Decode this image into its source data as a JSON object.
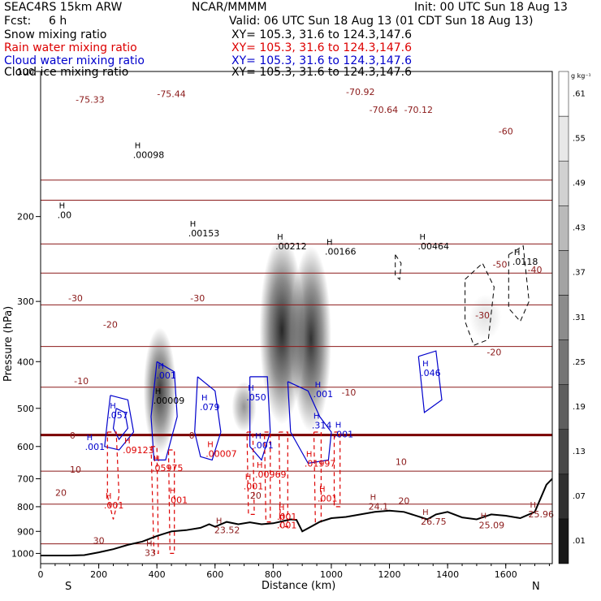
{
  "header": {
    "model": "SEAC4RS 15km ARW",
    "org": "NCAR/MMMM",
    "init": "Init: 00 UTC Sun 18 Aug 13",
    "fcst_label": "Fcst:",
    "fcst_value": "6 h",
    "valid": "Valid: 06 UTC Sun 18 Aug 13 (01 CDT Sun 18 Aug 13)"
  },
  "fields": [
    {
      "name": "Snow mixing ratio",
      "xy": "XY= 105.3, 31.6 to 124.3,147.6",
      "color": "#000000"
    },
    {
      "name": "Rain water mixing ratio",
      "xy": "XY= 105.3, 31.6 to 124.3,147.6",
      "color": "#dd0000"
    },
    {
      "name": "Cloud water mixing ratio",
      "xy": "XY= 105.3, 31.6 to 124.3,147.6",
      "color": "#0000cc"
    },
    {
      "name": "Cloud ice mixing ratio",
      "xy": "XY= 105.3, 31.6 to 124.3,147.6",
      "color": "#000000"
    }
  ],
  "colors": {
    "temperature": "#8b1a1a",
    "freezing_line": "#7a0000",
    "rain": "#dd0000",
    "cloud_water": "#0000cc",
    "terrain": "#000000"
  },
  "chart_data": {
    "type": "cross-section",
    "xlabel": "Distance (km)",
    "ylabel": "Pressure (hPa)",
    "x_range": [
      0,
      1760
    ],
    "y_range": [
      1050,
      100
    ],
    "y_scale": "log",
    "x_ticks": [
      0,
      200,
      400,
      600,
      800,
      1000,
      1200,
      1400,
      1600
    ],
    "y_ticks": [
      100,
      200,
      300,
      400,
      500,
      600,
      700,
      800,
      900,
      1000
    ],
    "start_label": "S",
    "end_label": "N",
    "colorbar": {
      "unit": "g kg⁻¹",
      "levels": [
        0.01,
        0.07,
        0.13,
        0.19,
        0.25,
        0.31,
        0.37,
        0.43,
        0.49,
        0.55,
        0.61
      ],
      "labels": [
        ".01",
        ".07",
        ".13",
        ".19",
        ".25",
        ".31",
        ".37",
        ".43",
        ".49",
        ".55",
        ".61"
      ]
    },
    "terrain": [
      [
        0,
        1010
      ],
      [
        100,
        1010
      ],
      [
        150,
        1008
      ],
      [
        200,
        995
      ],
      [
        250,
        980
      ],
      [
        300,
        960
      ],
      [
        350,
        945
      ],
      [
        400,
        920
      ],
      [
        450,
        900
      ],
      [
        500,
        895
      ],
      [
        550,
        885
      ],
      [
        580,
        870
      ],
      [
        600,
        880
      ],
      [
        640,
        860
      ],
      [
        680,
        870
      ],
      [
        720,
        862
      ],
      [
        760,
        870
      ],
      [
        800,
        866
      ],
      [
        840,
        855
      ],
      [
        860,
        850
      ],
      [
        880,
        852
      ],
      [
        900,
        900
      ],
      [
        930,
        880
      ],
      [
        960,
        860
      ],
      [
        1000,
        845
      ],
      [
        1050,
        840
      ],
      [
        1100,
        830
      ],
      [
        1150,
        820
      ],
      [
        1200,
        815
      ],
      [
        1250,
        820
      ],
      [
        1300,
        838
      ],
      [
        1330,
        850
      ],
      [
        1360,
        830
      ],
      [
        1400,
        820
      ],
      [
        1450,
        842
      ],
      [
        1500,
        850
      ],
      [
        1550,
        830
      ],
      [
        1600,
        835
      ],
      [
        1650,
        845
      ],
      [
        1700,
        820
      ],
      [
        1740,
        720
      ],
      [
        1760,
        700
      ]
    ],
    "temperature_lines": [
      {
        "label": "-70",
        "points": [
          [
            0,
            168
          ],
          [
            1760,
            168
          ]
        ]
      },
      {
        "label": "-60",
        "points": [
          [
            0,
            185
          ],
          [
            1760,
            185
          ]
        ]
      },
      {
        "label": "-50",
        "points": [
          [
            0,
            228
          ],
          [
            1760,
            228
          ]
        ]
      },
      {
        "label": "-40",
        "points": [
          [
            0,
            262
          ],
          [
            1760,
            262
          ]
        ]
      },
      {
        "label": "-30",
        "points": [
          [
            0,
            305
          ],
          [
            1760,
            305
          ]
        ]
      },
      {
        "label": "-20",
        "points": [
          [
            0,
            372
          ],
          [
            1760,
            372
          ]
        ]
      },
      {
        "label": "-10",
        "points": [
          [
            0,
            452
          ],
          [
            1760,
            452
          ]
        ]
      },
      {
        "label": "0",
        "points": [
          [
            0,
            568
          ],
          [
            1760,
            568
          ]
        ]
      },
      {
        "label": "10",
        "points": [
          [
            0,
            675
          ],
          [
            1760,
            675
          ]
        ]
      },
      {
        "label": "20",
        "points": [
          [
            0,
            790
          ],
          [
            1760,
            790
          ]
        ]
      },
      {
        "label": "30",
        "points": [
          [
            0,
            955
          ],
          [
            1760,
            955
          ]
        ]
      }
    ],
    "temperature_labels": [
      {
        "text": "-75.33",
        "x": 170,
        "y": 116
      },
      {
        "text": "-75.44",
        "x": 450,
        "y": 113
      },
      {
        "text": "-70.92",
        "x": 1100,
        "y": 112
      },
      {
        "text": "-70.64",
        "x": 1180,
        "y": 122
      },
      {
        "text": "-70.12",
        "x": 1300,
        "y": 122
      },
      {
        "text": "-60",
        "x": 1600,
        "y": 135
      },
      {
        "text": "-50",
        "x": 1580,
        "y": 255
      },
      {
        "text": "-40",
        "x": 1700,
        "y": 262
      },
      {
        "text": "-30",
        "x": 120,
        "y": 300
      },
      {
        "text": "-30",
        "x": 540,
        "y": 300
      },
      {
        "text": "-30",
        "x": 1520,
        "y": 325
      },
      {
        "text": "-20",
        "x": 240,
        "y": 340
      },
      {
        "text": "-20",
        "x": 1560,
        "y": 388
      },
      {
        "text": "-10",
        "x": 140,
        "y": 445
      },
      {
        "text": "-10",
        "x": 1060,
        "y": 470
      },
      {
        "text": "0",
        "x": 110,
        "y": 578
      },
      {
        "text": "0",
        "x": 520,
        "y": 578
      },
      {
        "text": "10",
        "x": 120,
        "y": 680
      },
      {
        "text": "10",
        "x": 1240,
        "y": 655
      },
      {
        "text": "20",
        "x": 70,
        "y": 760
      },
      {
        "text": "20",
        "x": 740,
        "y": 770
      },
      {
        "text": "20",
        "x": 1250,
        "y": 790
      },
      {
        "text": "30",
        "x": 200,
        "y": 955
      }
    ],
    "shading": [
      {
        "x": 410,
        "p_top": 340,
        "p_bottom": 620,
        "width": 40,
        "max": 0.55
      },
      {
        "x": 700,
        "p_top": 440,
        "p_bottom": 560,
        "width": 30,
        "max": 0.3
      },
      {
        "x": 830,
        "p_top": 220,
        "p_bottom": 540,
        "width": 55,
        "max": 0.61
      },
      {
        "x": 930,
        "p_top": 230,
        "p_bottom": 560,
        "width": 50,
        "max": 0.58
      },
      {
        "x": 1530,
        "p_top": 290,
        "p_bottom": 360,
        "width": 40,
        "max": 0.08
      }
    ],
    "maxima": [
      {
        "text": ".00098",
        "x": 340,
        "y": 150,
        "color": "#000000"
      },
      {
        "text": ".00",
        "x": 80,
        "y": 200,
        "color": "#000000"
      },
      {
        "text": ".00153",
        "x": 530,
        "y": 218,
        "color": "#000000"
      },
      {
        "text": ".00212",
        "x": 830,
        "y": 232,
        "color": "#000000"
      },
      {
        "text": ".00166",
        "x": 1000,
        "y": 238,
        "color": "#000000"
      },
      {
        "text": ".00464",
        "x": 1320,
        "y": 232,
        "color": "#000000"
      },
      {
        "text": ".0118",
        "x": 1645,
        "y": 250,
        "color": "#000000"
      },
      {
        "text": ".00009",
        "x": 410,
        "y": 485,
        "color": "#000000"
      },
      {
        "text": ".001",
        "x": 420,
        "y": 430,
        "color": "#0000cc"
      },
      {
        "text": ".057",
        "x": 255,
        "y": 520,
        "color": "#0000cc"
      },
      {
        "text": ".079",
        "x": 570,
        "y": 500,
        "color": "#0000cc"
      },
      {
        "text": ".050",
        "x": 730,
        "y": 478,
        "color": "#0000cc"
      },
      {
        "text": ".001",
        "x": 960,
        "y": 470,
        "color": "#0000cc"
      },
      {
        "text": ".314",
        "x": 955,
        "y": 546,
        "color": "#0000cc"
      },
      {
        "text": ".046",
        "x": 1330,
        "y": 425,
        "color": "#0000cc"
      },
      {
        "text": ".001",
        "x": 175,
        "y": 605,
        "color": "#0000cc"
      },
      {
        "text": ".001",
        "x": 755,
        "y": 600,
        "color": "#0000cc"
      },
      {
        "text": ".001",
        "x": 1030,
        "y": 570,
        "color": "#0000cc"
      },
      {
        "text": ".09123",
        "x": 305,
        "y": 615,
        "color": "#dd0000"
      },
      {
        "text": ".05975",
        "x": 405,
        "y": 670,
        "color": "#dd0000"
      },
      {
        "text": ".00007",
        "x": 590,
        "y": 625,
        "color": "#dd0000"
      },
      {
        "text": ".00969",
        "x": 760,
        "y": 690,
        "color": "#dd0000"
      },
      {
        "text": ".01997",
        "x": 930,
        "y": 655,
        "color": "#dd0000"
      },
      {
        "text": ".001",
        "x": 720,
        "y": 730,
        "color": "#dd0000"
      },
      {
        "text": ".001",
        "x": 240,
        "y": 800,
        "color": "#dd0000"
      },
      {
        "text": ".001",
        "x": 460,
        "y": 780,
        "color": "#dd0000"
      },
      {
        "text": ".001",
        "x": 975,
        "y": 775,
        "color": "#dd0000"
      },
      {
        "text": ".001",
        "x": 835,
        "y": 845,
        "color": "#dd0000"
      },
      {
        "text": ".001",
        "x": 835,
        "y": 880,
        "color": "#dd0000"
      },
      {
        "text": "23.52",
        "x": 620,
        "y": 900,
        "color": "#8b1a1a"
      },
      {
        "text": "24.1",
        "x": 1150,
        "y": 805,
        "color": "#8b1a1a"
      },
      {
        "text": "26.75",
        "x": 1330,
        "y": 865,
        "color": "#8b1a1a"
      },
      {
        "text": "25.09",
        "x": 1530,
        "y": 880,
        "color": "#8b1a1a"
      },
      {
        "text": "25.96",
        "x": 1700,
        "y": 835,
        "color": "#8b1a1a"
      },
      {
        "text": "33",
        "x": 380,
        "y": 1005,
        "color": "#8b1a1a"
      }
    ],
    "cloud_water_contours": [
      {
        "points": [
          [
            240,
            470
          ],
          [
            300,
            480
          ],
          [
            320,
            560
          ],
          [
            270,
            610
          ],
          [
            220,
            600
          ],
          [
            230,
            530
          ],
          [
            240,
            470
          ]
        ]
      },
      {
        "points": [
          [
            260,
            500
          ],
          [
            290,
            510
          ],
          [
            300,
            550
          ],
          [
            270,
            580
          ],
          [
            250,
            550
          ],
          [
            260,
            500
          ]
        ]
      },
      {
        "points": [
          [
            400,
            400
          ],
          [
            460,
            420
          ],
          [
            470,
            520
          ],
          [
            430,
            640
          ],
          [
            390,
            640
          ],
          [
            380,
            520
          ],
          [
            400,
            400
          ]
        ]
      },
      {
        "points": [
          [
            540,
            430
          ],
          [
            600,
            460
          ],
          [
            620,
            560
          ],
          [
            590,
            640
          ],
          [
            550,
            630
          ],
          [
            530,
            560
          ],
          [
            540,
            430
          ]
        ]
      },
      {
        "points": [
          [
            720,
            430
          ],
          [
            780,
            430
          ],
          [
            790,
            560
          ],
          [
            760,
            640
          ],
          [
            720,
            600
          ],
          [
            720,
            430
          ]
        ]
      },
      {
        "points": [
          [
            850,
            440
          ],
          [
            920,
            460
          ],
          [
            960,
            520
          ],
          [
            1000,
            560
          ],
          [
            990,
            640
          ],
          [
            920,
            650
          ],
          [
            860,
            560
          ],
          [
            850,
            440
          ]
        ]
      },
      {
        "points": [
          [
            1300,
            390
          ],
          [
            1360,
            380
          ],
          [
            1380,
            480
          ],
          [
            1320,
            510
          ],
          [
            1300,
            390
          ]
        ]
      }
    ],
    "rain_contours": [
      {
        "points": [
          [
            230,
            560
          ],
          [
            260,
            560
          ],
          [
            270,
            760
          ],
          [
            250,
            850
          ],
          [
            230,
            760
          ],
          [
            230,
            560
          ]
        ]
      },
      {
        "points": [
          [
            380,
            600
          ],
          [
            400,
            600
          ],
          [
            405,
            1000
          ],
          [
            390,
            1000
          ],
          [
            380,
            600
          ]
        ]
      },
      {
        "points": [
          [
            440,
            610
          ],
          [
            460,
            610
          ],
          [
            460,
            1000
          ],
          [
            445,
            1000
          ],
          [
            440,
            610
          ]
        ]
      },
      {
        "points": [
          [
            710,
            560
          ],
          [
            730,
            560
          ],
          [
            735,
            830
          ],
          [
            715,
            830
          ],
          [
            710,
            560
          ]
        ]
      },
      {
        "points": [
          [
            770,
            560
          ],
          [
            790,
            560
          ],
          [
            790,
            860
          ],
          [
            775,
            860
          ],
          [
            770,
            560
          ]
        ]
      },
      {
        "points": [
          [
            820,
            560
          ],
          [
            850,
            560
          ],
          [
            850,
            880
          ],
          [
            825,
            880
          ],
          [
            820,
            560
          ]
        ]
      },
      {
        "points": [
          [
            940,
            560
          ],
          [
            965,
            560
          ],
          [
            965,
            860
          ],
          [
            945,
            860
          ],
          [
            940,
            560
          ]
        ]
      },
      {
        "points": [
          [
            1010,
            560
          ],
          [
            1030,
            560
          ],
          [
            1030,
            800
          ],
          [
            1010,
            800
          ],
          [
            1010,
            560
          ]
        ]
      }
    ],
    "ice_contours": [
      {
        "points": [
          [
            1460,
            270
          ],
          [
            1520,
            250
          ],
          [
            1560,
            280
          ],
          [
            1540,
            360
          ],
          [
            1490,
            370
          ],
          [
            1460,
            330
          ],
          [
            1460,
            270
          ]
        ]
      },
      {
        "points": [
          [
            1610,
            240
          ],
          [
            1660,
            230
          ],
          [
            1680,
            300
          ],
          [
            1650,
            330
          ],
          [
            1610,
            310
          ],
          [
            1610,
            240
          ]
        ]
      },
      {
        "points": [
          [
            1220,
            240
          ],
          [
            1240,
            250
          ],
          [
            1235,
            270
          ],
          [
            1220,
            265
          ],
          [
            1220,
            240
          ]
        ]
      }
    ]
  }
}
